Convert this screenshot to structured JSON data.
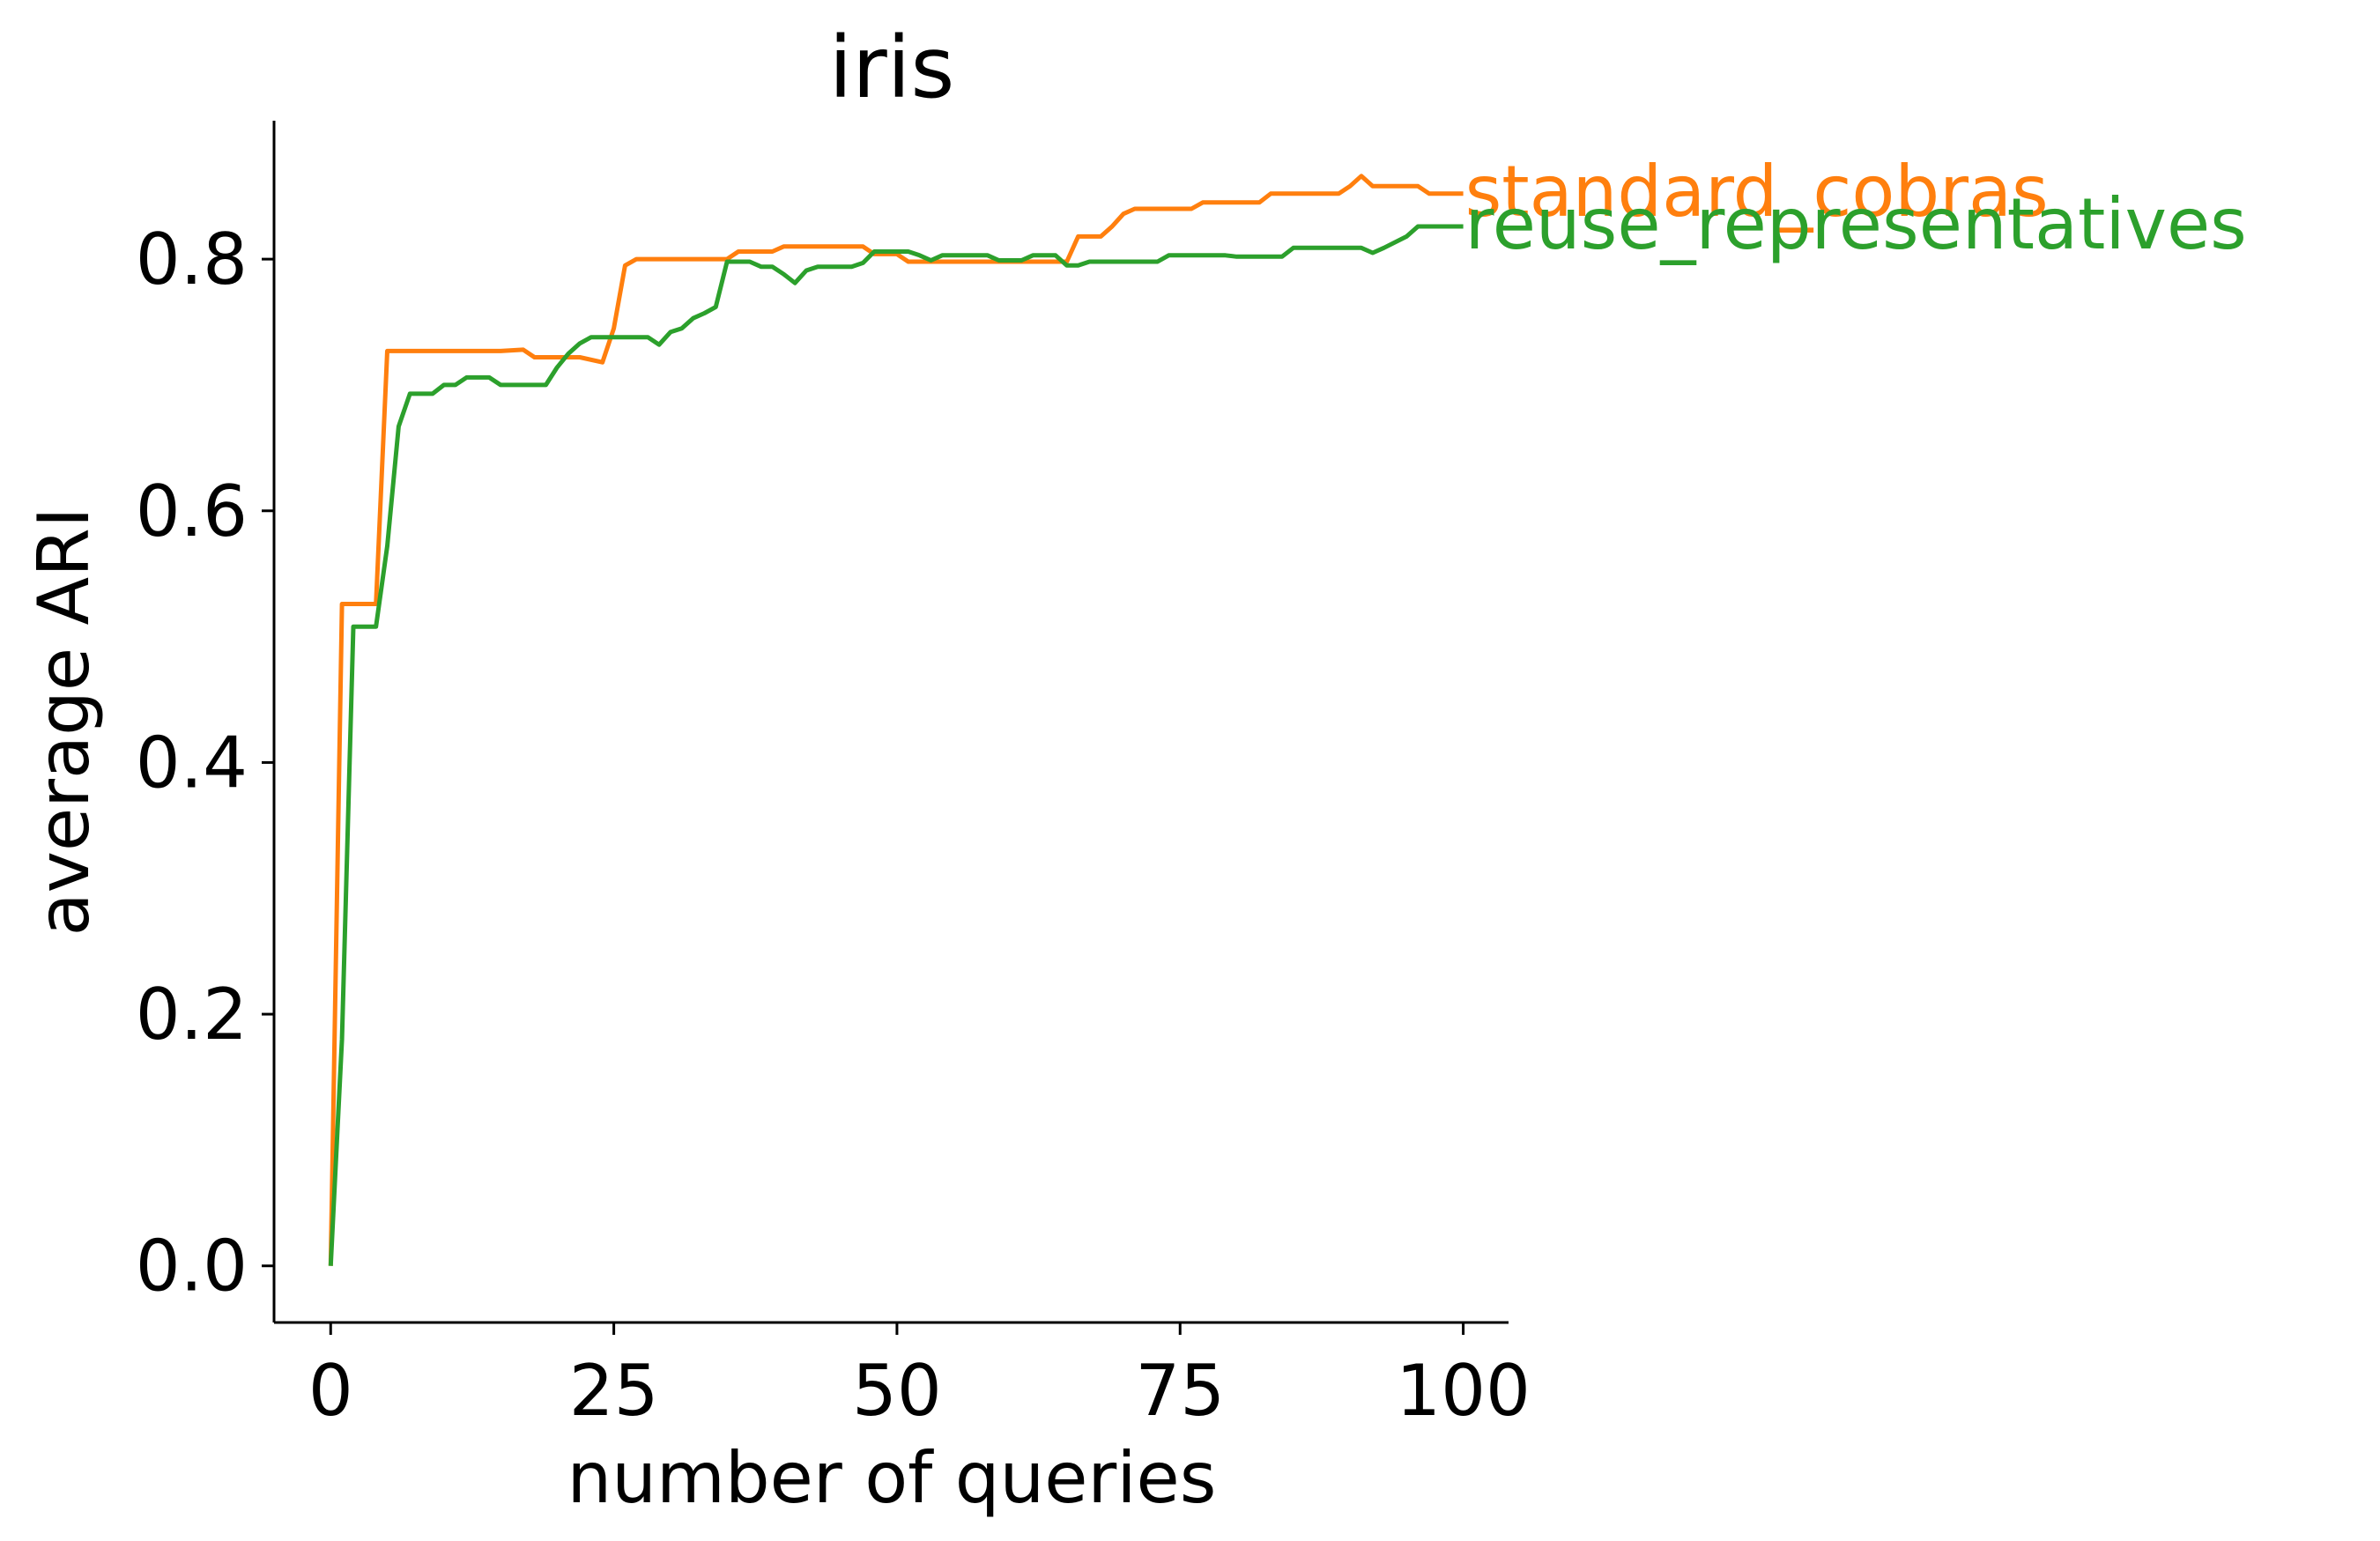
{
  "chart_data": {
    "type": "line",
    "title": "iris",
    "xlabel": "number of queries",
    "ylabel": "average ARI",
    "xlim": [
      -5,
      104
    ],
    "ylim": [
      -0.045,
      0.91
    ],
    "xticks": [
      {
        "value": 0,
        "label": "0"
      },
      {
        "value": 25,
        "label": "25"
      },
      {
        "value": 50,
        "label": "50"
      },
      {
        "value": 75,
        "label": "75"
      },
      {
        "value": 100,
        "label": "100"
      }
    ],
    "yticks": [
      {
        "value": 0.0,
        "label": "0.0"
      },
      {
        "value": 0.2,
        "label": "0.2"
      },
      {
        "value": 0.4,
        "label": "0.4"
      },
      {
        "value": 0.6,
        "label": "0.6"
      },
      {
        "value": 0.8,
        "label": "0.8"
      }
    ],
    "grid": false,
    "legend": "inline labels at line ends",
    "series": [
      {
        "name": "standard_cobras",
        "color": "#ff7f0e",
        "points": [
          [
            0,
            0.0
          ],
          [
            1,
            0.526
          ],
          [
            2,
            0.526
          ],
          [
            3,
            0.526
          ],
          [
            4,
            0.526
          ],
          [
            5,
            0.727
          ],
          [
            10,
            0.727
          ],
          [
            15,
            0.727
          ],
          [
            17,
            0.728
          ],
          [
            18,
            0.722
          ],
          [
            22,
            0.722
          ],
          [
            24,
            0.718
          ],
          [
            25,
            0.745
          ],
          [
            26,
            0.795
          ],
          [
            27,
            0.8
          ],
          [
            35,
            0.8
          ],
          [
            36,
            0.806
          ],
          [
            39,
            0.806
          ],
          [
            40,
            0.81
          ],
          [
            47,
            0.81
          ],
          [
            48,
            0.804
          ],
          [
            50,
            0.804
          ],
          [
            51,
            0.798
          ],
          [
            65,
            0.798
          ],
          [
            66,
            0.818
          ],
          [
            68,
            0.818
          ],
          [
            69,
            0.826
          ],
          [
            70,
            0.836
          ],
          [
            71,
            0.84
          ],
          [
            76,
            0.84
          ],
          [
            77,
            0.845
          ],
          [
            82,
            0.845
          ],
          [
            83,
            0.852
          ],
          [
            89,
            0.852
          ],
          [
            90,
            0.858
          ],
          [
            91,
            0.866
          ],
          [
            92,
            0.858
          ],
          [
            96,
            0.858
          ],
          [
            97,
            0.852
          ],
          [
            100,
            0.852
          ]
        ]
      },
      {
        "name": "reuse_representatives",
        "color": "#2ca02c",
        "points": [
          [
            0,
            0.0
          ],
          [
            1,
            0.18
          ],
          [
            2,
            0.508
          ],
          [
            3,
            0.508
          ],
          [
            4,
            0.508
          ],
          [
            5,
            0.572
          ],
          [
            6,
            0.667
          ],
          [
            7,
            0.693
          ],
          [
            9,
            0.693
          ],
          [
            10,
            0.7
          ],
          [
            11,
            0.7
          ],
          [
            12,
            0.706
          ],
          [
            14,
            0.706
          ],
          [
            15,
            0.7
          ],
          [
            19,
            0.7
          ],
          [
            20,
            0.714
          ],
          [
            21,
            0.725
          ],
          [
            22,
            0.733
          ],
          [
            23,
            0.738
          ],
          [
            28,
            0.738
          ],
          [
            29,
            0.732
          ],
          [
            30,
            0.742
          ],
          [
            31,
            0.745
          ],
          [
            32,
            0.753
          ],
          [
            33,
            0.757
          ],
          [
            34,
            0.762
          ],
          [
            35,
            0.798
          ],
          [
            37,
            0.798
          ],
          [
            38,
            0.794
          ],
          [
            39,
            0.794
          ],
          [
            40,
            0.788
          ],
          [
            41,
            0.781
          ],
          [
            42,
            0.791
          ],
          [
            43,
            0.794
          ],
          [
            46,
            0.794
          ],
          [
            47,
            0.797
          ],
          [
            48,
            0.806
          ],
          [
            51,
            0.806
          ],
          [
            52,
            0.803
          ],
          [
            53,
            0.799
          ],
          [
            54,
            0.803
          ],
          [
            58,
            0.803
          ],
          [
            59,
            0.799
          ],
          [
            61,
            0.799
          ],
          [
            62,
            0.803
          ],
          [
            64,
            0.803
          ],
          [
            65,
            0.795
          ],
          [
            66,
            0.795
          ],
          [
            67,
            0.798
          ],
          [
            73,
            0.798
          ],
          [
            74,
            0.803
          ],
          [
            79,
            0.803
          ],
          [
            80,
            0.802
          ],
          [
            84,
            0.802
          ],
          [
            85,
            0.809
          ],
          [
            91,
            0.809
          ],
          [
            92,
            0.805
          ],
          [
            93,
            0.809
          ],
          [
            95,
            0.818
          ],
          [
            96,
            0.826
          ],
          [
            100,
            0.826
          ]
        ]
      }
    ]
  }
}
